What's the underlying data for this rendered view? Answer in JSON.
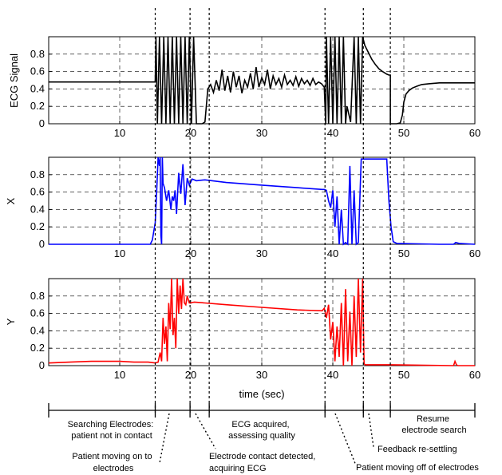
{
  "chart_data": [
    {
      "type": "line",
      "ylabel": "ECG Signal",
      "xlim": [
        0,
        60
      ],
      "ylim": [
        0,
        1
      ],
      "xticks": [
        10,
        20,
        30,
        40,
        50,
        60
      ],
      "yticks": [
        0,
        0.2,
        0.4,
        0.6,
        0.8
      ],
      "grid": "dashed",
      "series": [
        {
          "color": "#000000",
          "x": [
            0,
            15.0,
            15.1,
            15.3,
            15.6,
            15.9,
            16.2,
            16.5,
            16.8,
            17.1,
            17.4,
            17.7,
            18.0,
            18.3,
            18.6,
            18.9,
            19.2,
            19.5,
            19.8,
            20.1,
            20.4,
            20.8,
            21.2,
            21.6,
            22.0,
            22.4,
            22.8,
            23.2,
            23.6,
            24.0,
            24.4,
            24.8,
            25.2,
            25.6,
            26.0,
            26.4,
            26.8,
            27.2,
            27.6,
            28.0,
            28.4,
            28.8,
            29.2,
            29.6,
            30.0,
            30.4,
            30.8,
            31.2,
            31.6,
            32.0,
            32.4,
            32.8,
            33.2,
            33.6,
            34.0,
            34.4,
            34.8,
            35.2,
            35.6,
            36.0,
            36.4,
            36.8,
            37.2,
            37.6,
            38.0,
            38.4,
            38.8,
            39.0,
            39.1,
            39.4,
            39.7,
            40.0,
            40.3,
            40.6,
            40.9,
            41.2,
            41.5,
            41.8,
            42.0,
            42.5,
            43.0,
            43.3,
            43.6,
            43.9,
            44.2,
            44.5,
            45.0,
            45.5,
            46.0,
            46.5,
            47.0,
            47.6,
            47.9,
            48.1,
            48.1,
            48.5,
            49.0,
            49.5,
            49.8,
            50.0,
            50.3,
            50.7,
            51.2,
            51.8,
            52.5,
            53.5,
            55.0,
            57.0,
            60.0
          ],
          "y": [
            0.48,
            0.48,
            1.0,
            0.0,
            1.0,
            0.0,
            1.0,
            0.0,
            1.0,
            0.0,
            1.0,
            0.0,
            1.0,
            0.0,
            1.0,
            0.0,
            1.0,
            0.0,
            1.0,
            0.0,
            1.0,
            0.0,
            0.0,
            0.0,
            0.02,
            0.4,
            0.45,
            0.36,
            0.5,
            0.38,
            0.62,
            0.38,
            0.55,
            0.36,
            0.6,
            0.42,
            0.55,
            0.35,
            0.5,
            0.42,
            0.58,
            0.4,
            0.65,
            0.42,
            0.53,
            0.45,
            0.62,
            0.4,
            0.55,
            0.45,
            0.52,
            0.42,
            0.56,
            0.45,
            0.5,
            0.44,
            0.54,
            0.43,
            0.52,
            0.46,
            0.5,
            0.44,
            0.52,
            0.45,
            0.48,
            0.46,
            0.42,
            0.0,
            1.0,
            0.0,
            1.0,
            0.0,
            1.0,
            0.0,
            1.0,
            0.0,
            1.0,
            0.0,
            0.2,
            0.02,
            1.0,
            0.0,
            1.0,
            0.0,
            1.0,
            0.9,
            0.82,
            0.74,
            0.68,
            0.63,
            0.6,
            0.57,
            0.56,
            0.56,
            0.0,
            0.0,
            0.0,
            0.01,
            0.1,
            0.25,
            0.34,
            0.38,
            0.41,
            0.43,
            0.45,
            0.46,
            0.47,
            0.47,
            0.47
          ]
        }
      ]
    },
    {
      "type": "line",
      "ylabel": "X",
      "xlim": [
        0,
        60
      ],
      "ylim": [
        0,
        1
      ],
      "xticks": [
        10,
        20,
        30,
        40,
        50,
        60
      ],
      "yticks": [
        0,
        0.2,
        0.4,
        0.6,
        0.8
      ],
      "grid": "dashed",
      "series": [
        {
          "color": "#0000ff",
          "x": [
            0,
            14.3,
            14.6,
            15.0,
            15.2,
            15.4,
            15.6,
            15.7,
            15.8,
            15.9,
            16.0,
            16.1,
            16.3,
            16.6,
            16.9,
            17.2,
            17.4,
            17.6,
            17.8,
            18.0,
            18.3,
            18.6,
            18.9,
            19.2,
            19.5,
            19.8,
            20.2,
            20.8,
            22.0,
            25.0,
            30.0,
            35.0,
            38.5,
            38.8,
            39.1,
            39.4,
            39.7,
            40.0,
            40.3,
            40.6,
            40.9,
            41.2,
            41.5,
            41.8,
            42.1,
            42.4,
            42.7,
            43.0,
            43.3,
            43.6,
            44.0,
            44.2,
            44.4,
            44.5,
            45.0,
            46.0,
            47.0,
            47.6,
            47.9,
            48.2,
            48.5,
            49.0,
            55.0,
            57.0,
            57.3,
            57.8,
            60.0
          ],
          "y": [
            0,
            0,
            0.05,
            0.25,
            0.6,
            1.0,
            0.9,
            1.0,
            0.1,
            0.0,
            1.0,
            0.7,
            0.65,
            0.5,
            0.62,
            0.4,
            0.55,
            0.5,
            0.62,
            0.35,
            0.82,
            0.58,
            0.92,
            0.45,
            0.76,
            0.68,
            0.75,
            0.73,
            0.74,
            0.71,
            0.68,
            0.65,
            0.63,
            0.63,
            0.62,
            0.5,
            0.42,
            0.62,
            0.2,
            0.55,
            0.0,
            0.4,
            0.0,
            0.02,
            0.0,
            0.9,
            0.0,
            0.62,
            0.0,
            0.02,
            0.98,
            0.98,
            0.98,
            0.98,
            0.98,
            0.98,
            0.98,
            0.98,
            0.5,
            0.2,
            0.03,
            0.01,
            0.0,
            0.0,
            0.02,
            0.01,
            0.0
          ]
        }
      ]
    },
    {
      "type": "line",
      "ylabel": "Y",
      "xlim": [
        0,
        60
      ],
      "ylim": [
        0,
        1
      ],
      "xticks": [
        10,
        20,
        30,
        40,
        50,
        60
      ],
      "yticks": [
        0,
        0.2,
        0.4,
        0.6,
        0.8
      ],
      "grid": "dashed",
      "series": [
        {
          "color": "#ff0000",
          "x": [
            0,
            3.0,
            6.0,
            8.0,
            10.0,
            12.0,
            14.0,
            15.0,
            15.4,
            15.7,
            15.9,
            16.1,
            16.3,
            16.5,
            16.7,
            16.9,
            17.1,
            17.3,
            17.5,
            17.7,
            17.9,
            18.1,
            18.3,
            18.5,
            18.7,
            18.9,
            19.1,
            19.3,
            19.5,
            19.8,
            20.5,
            22.0,
            25.0,
            30.0,
            35.0,
            38.5,
            38.8,
            39.1,
            39.4,
            39.7,
            40.0,
            40.3,
            40.6,
            40.9,
            41.2,
            41.5,
            41.8,
            42.1,
            42.4,
            42.7,
            43.0,
            43.3,
            43.6,
            43.9,
            44.2,
            44.4,
            44.6,
            45.0,
            48.0,
            57.0,
            57.2,
            57.4,
            57.6,
            60.0
          ],
          "y": [
            0.03,
            0.04,
            0.05,
            0.05,
            0.05,
            0.04,
            0.04,
            0.03,
            0.04,
            0.15,
            0.05,
            0.55,
            0.25,
            0.45,
            0.05,
            0.72,
            0.42,
            1.0,
            0.35,
            0.55,
            0.2,
            1.0,
            0.6,
            0.92,
            0.65,
            1.0,
            0.72,
            0.7,
            0.8,
            0.72,
            0.73,
            0.72,
            0.7,
            0.67,
            0.64,
            0.63,
            0.66,
            0.55,
            0.7,
            0.3,
            0.5,
            0.05,
            0.45,
            0.1,
            0.72,
            0.0,
            0.88,
            0.05,
            0.62,
            0.0,
            0.8,
            0.1,
            1.0,
            0.15,
            1.0,
            0.02,
            0.01,
            0.01,
            0.01,
            0.0,
            0.05,
            0.01,
            0.0,
            0.0
          ]
        }
      ]
    }
  ],
  "xlabel": "time (sec)",
  "event_times": [
    15.0,
    19.9,
    22.6,
    38.9,
    44.3,
    48.1
  ],
  "timeline": {
    "ticks": [
      0,
      15.0,
      19.9,
      22.6,
      38.9,
      44.3,
      48.1,
      60
    ],
    "annotations": [
      {
        "lines": [
          "Searching Electrodes:",
          "patient not in contact"
        ]
      },
      {
        "lines": [
          "Patient moving on to",
          "electrodes"
        ]
      },
      {
        "lines": [
          "Electrode contact detected,",
          "acquiring ECG"
        ]
      },
      {
        "lines": [
          "ECG acquired,",
          "assessing quality"
        ]
      },
      {
        "lines": [
          "Patient moving off of electrodes"
        ]
      },
      {
        "lines": [
          "Feedback re-settling"
        ]
      },
      {
        "lines": [
          "Resume",
          "electrode search"
        ]
      }
    ]
  }
}
